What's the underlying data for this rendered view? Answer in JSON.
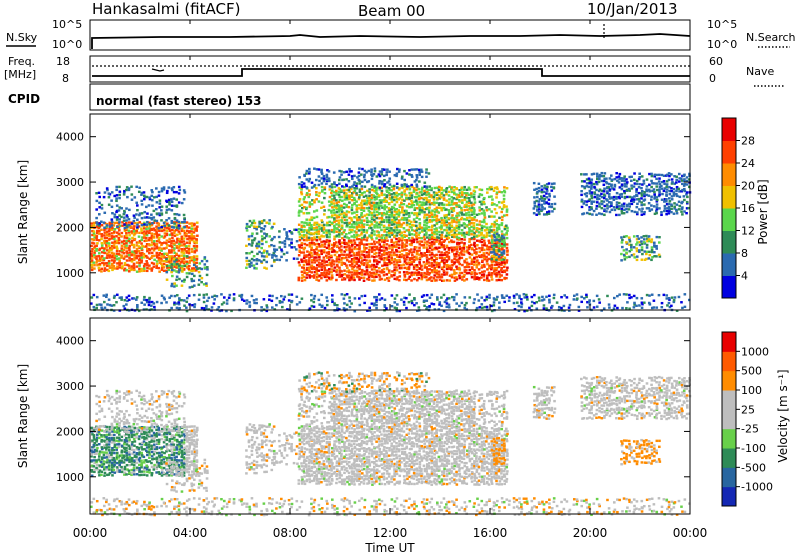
{
  "header": {
    "station": "Hankasalmi (fitACF)",
    "beam": "Beam 00",
    "date": "10/Jan/2013"
  },
  "noise_panel": {
    "left_label": "N.Sky",
    "left_ticks": [
      "10^5",
      "10^0"
    ],
    "right_ticks": [
      "10^5",
      "10^0"
    ],
    "right_label": "N.Search"
  },
  "freq_panel": {
    "left_label_1": "Freq.",
    "left_label_2": "[MHz]",
    "left_ticks": [
      "18",
      "8"
    ],
    "right_ticks": [
      "60",
      "0"
    ],
    "right_label": "Nave"
  },
  "cpid": {
    "label": "CPID",
    "text": "normal (fast stereo) 153"
  },
  "chart_data": [
    {
      "type": "heatmap",
      "name": "power",
      "ylabel": "Slant Range [km]",
      "yticks": [
        "4000",
        "3000",
        "2000",
        "1000"
      ],
      "ylim": [
        180,
        4500
      ],
      "colorbar_label": "Power [dB]",
      "colorbar_ticks": [
        "28",
        "24",
        "20",
        "16",
        "12",
        "8",
        "4"
      ],
      "colors": [
        "#0000e0",
        "#2a6ab0",
        "#2e8b57",
        "#5ad64b",
        "#f0c000",
        "#ff8c00",
        "#ff4000",
        "#e80000"
      ]
    },
    {
      "type": "heatmap",
      "name": "velocity",
      "ylabel": "Slant Range [km]",
      "yticks": [
        "4000",
        "3000",
        "2000",
        "1000"
      ],
      "ylim": [
        180,
        4500
      ],
      "colorbar_label": "Velocity [m s⁻¹]",
      "colorbar_ticks": [
        "1000",
        "500",
        "100",
        "25",
        "-25",
        "-100",
        "-500",
        "-1000"
      ],
      "colors": [
        "#1428b4",
        "#2866a0",
        "#2e8b57",
        "#68d04a",
        "#bebebe",
        "#bebebe",
        "#ff8c00",
        "#ff5a00",
        "#e80000"
      ]
    }
  ],
  "xaxis": {
    "ticks": [
      "00:00",
      "04:00",
      "08:00",
      "12:00",
      "16:00",
      "20:00",
      "00:00"
    ],
    "label": "Time UT"
  }
}
